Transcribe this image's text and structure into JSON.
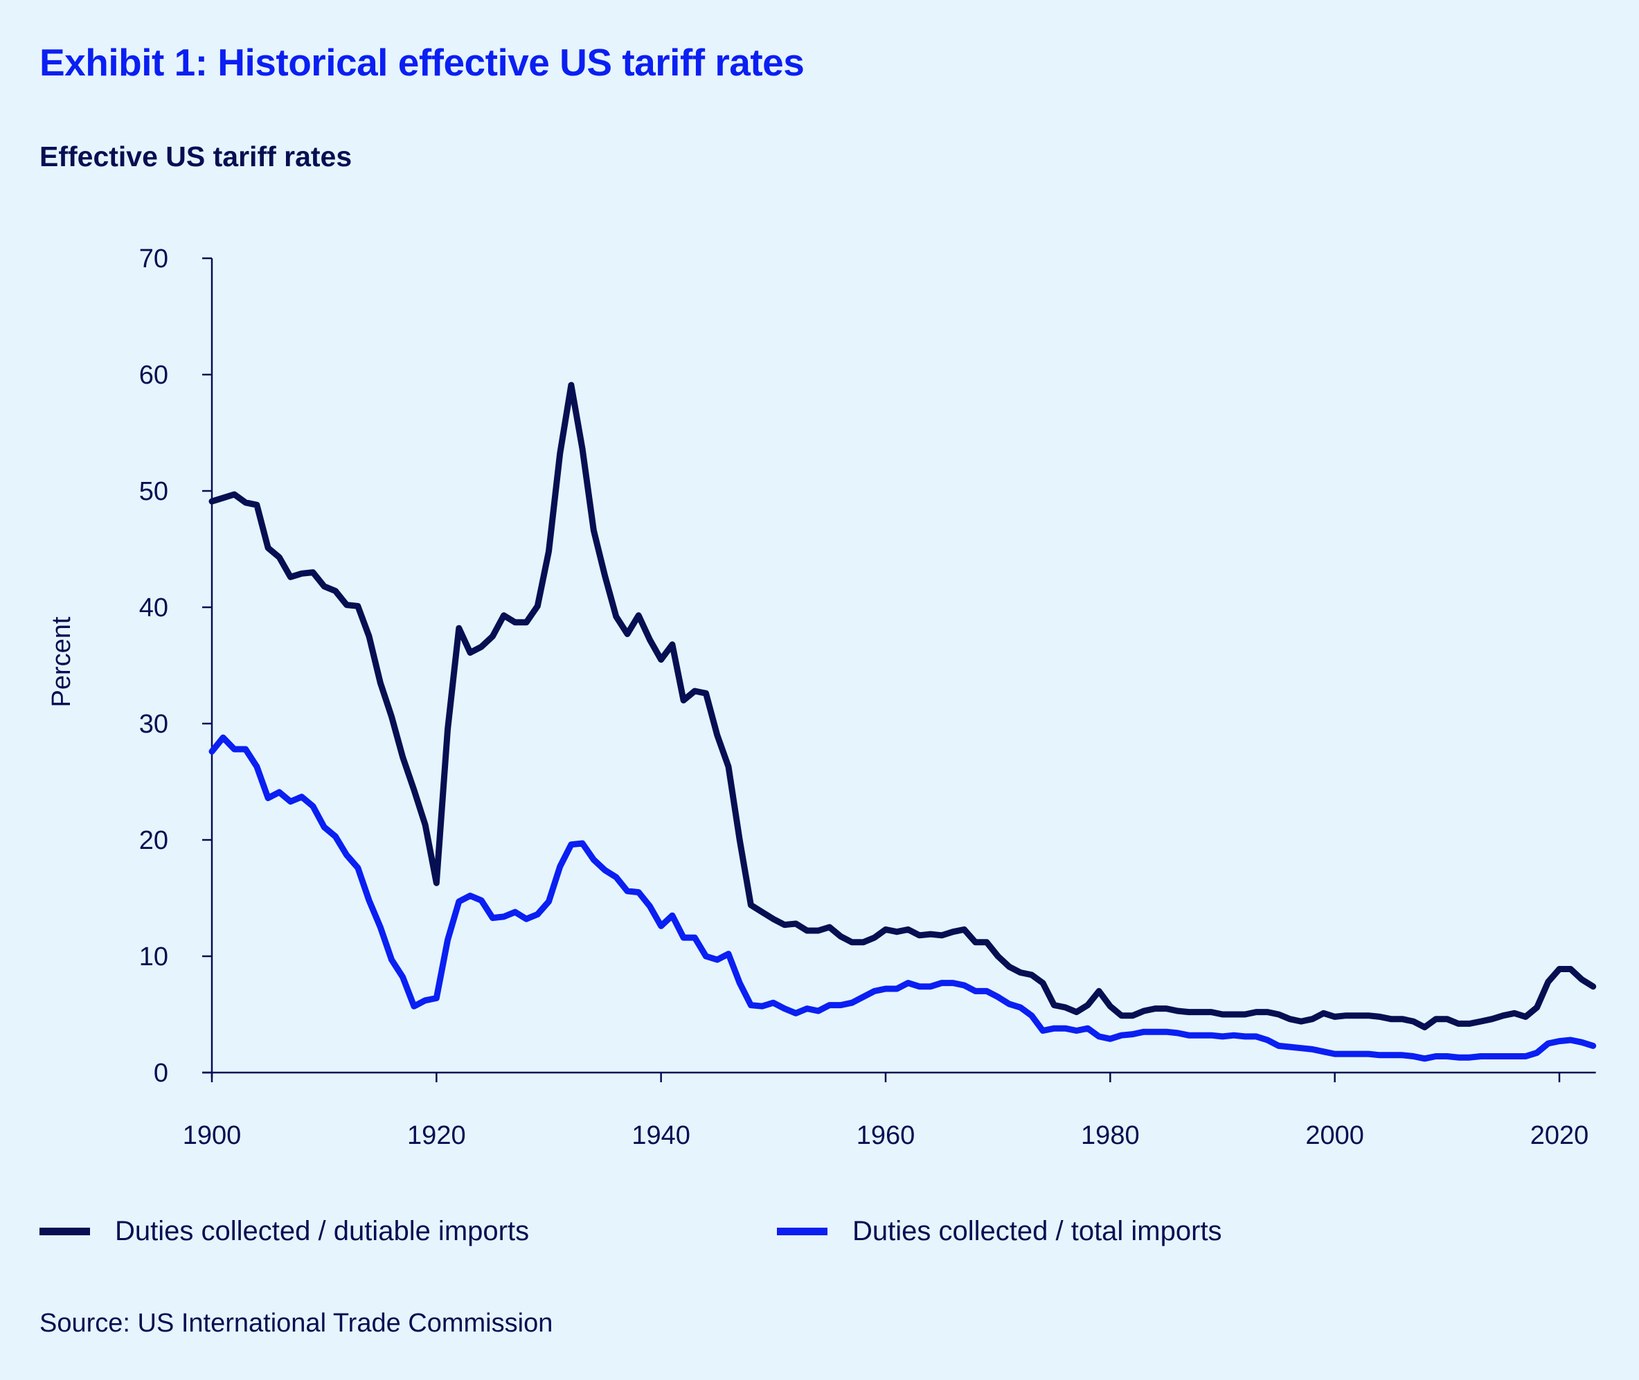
{
  "header": {
    "title": "Exhibit 1: Historical effective US tariff rates",
    "subtitle": "Effective US tariff rates"
  },
  "colors": {
    "background": "#e6f4fd",
    "title": "#0a1ff2",
    "text": "#050f52",
    "series_dutiable": "#050f52",
    "series_total": "#0a1ff2"
  },
  "footer": {
    "source": "Source: US International Trade Commission"
  },
  "chart_data": {
    "type": "line",
    "title": "Effective US tariff rates",
    "xlabel": "",
    "ylabel": "Percent",
    "xlim": [
      1900,
      2023
    ],
    "ylim": [
      0,
      70
    ],
    "grid": false,
    "legend_position": "bottom",
    "x_ticks": [
      1900,
      1920,
      1940,
      1960,
      1980,
      2000,
      2020
    ],
    "x_tick_labels": [
      "1900",
      "1920",
      "1940",
      "1960",
      "1980",
      "2000",
      "2020"
    ],
    "y_ticks": [
      0,
      10,
      20,
      30,
      40,
      50,
      60,
      70
    ],
    "y_tick_labels": [
      "0",
      "10",
      "20",
      "30",
      "40",
      "50",
      "60",
      "70"
    ],
    "x_start": 1900,
    "series": [
      {
        "name": "Duties collected / dutiable imports",
        "color": "#050f52",
        "values": [
          49.1,
          49.4,
          49.7,
          49.0,
          48.8,
          45.1,
          44.3,
          42.6,
          42.9,
          43.0,
          41.8,
          41.4,
          40.2,
          40.1,
          37.5,
          33.5,
          30.6,
          27.1,
          24.3,
          21.3,
          16.3,
          29.5,
          38.2,
          36.1,
          36.6,
          37.5,
          39.3,
          38.7,
          38.7,
          40.1,
          44.8,
          53.2,
          59.1,
          53.6,
          46.6,
          42.7,
          39.2,
          37.7,
          39.3,
          37.2,
          35.5,
          36.8,
          32.0,
          32.8,
          32.6,
          29.0,
          26.3,
          20.0,
          14.4,
          13.8,
          13.2,
          12.7,
          12.8,
          12.2,
          12.2,
          12.5,
          11.7,
          11.2,
          11.2,
          11.6,
          12.3,
          12.1,
          12.3,
          11.8,
          11.9,
          11.8,
          12.1,
          12.3,
          11.2,
          11.2,
          10.0,
          9.1,
          8.6,
          8.4,
          7.7,
          5.8,
          5.6,
          5.2,
          5.8,
          7.0,
          5.7,
          4.9,
          4.9,
          5.3,
          5.5,
          5.5,
          5.3,
          5.2,
          5.2,
          5.2,
          5.0,
          5.0,
          5.0,
          5.2,
          5.2,
          5.0,
          4.6,
          4.4,
          4.6,
          5.1,
          4.8,
          4.9,
          4.9,
          4.9,
          4.8,
          4.6,
          4.6,
          4.4,
          3.9,
          4.6,
          4.6,
          4.2,
          4.2,
          4.4,
          4.6,
          4.9,
          5.1,
          4.8,
          5.6,
          7.8,
          8.9,
          8.9,
          8.0,
          7.4
        ]
      },
      {
        "name": "Duties collected / total imports",
        "color": "#0a1ff2",
        "values": [
          27.6,
          28.8,
          27.8,
          27.8,
          26.3,
          23.6,
          24.1,
          23.3,
          23.7,
          22.9,
          21.1,
          20.3,
          18.7,
          17.6,
          14.8,
          12.5,
          9.7,
          8.2,
          5.7,
          6.2,
          6.4,
          11.4,
          14.7,
          15.2,
          14.8,
          13.3,
          13.4,
          13.8,
          13.2,
          13.6,
          14.7,
          17.7,
          19.6,
          19.7,
          18.3,
          17.4,
          16.8,
          15.6,
          15.5,
          14.3,
          12.6,
          13.5,
          11.6,
          11.6,
          10.0,
          9.7,
          10.2,
          7.7,
          5.8,
          5.7,
          6.0,
          5.5,
          5.1,
          5.5,
          5.3,
          5.8,
          5.8,
          6.0,
          6.5,
          7.0,
          7.2,
          7.2,
          7.7,
          7.4,
          7.4,
          7.7,
          7.7,
          7.5,
          7.0,
          7.0,
          6.5,
          5.9,
          5.6,
          4.9,
          3.6,
          3.8,
          3.8,
          3.6,
          3.8,
          3.1,
          2.9,
          3.2,
          3.3,
          3.5,
          3.5,
          3.5,
          3.4,
          3.2,
          3.2,
          3.2,
          3.1,
          3.2,
          3.1,
          3.1,
          2.8,
          2.3,
          2.2,
          2.1,
          2.0,
          1.8,
          1.6,
          1.6,
          1.6,
          1.6,
          1.5,
          1.5,
          1.5,
          1.4,
          1.2,
          1.4,
          1.4,
          1.3,
          1.3,
          1.4,
          1.4,
          1.4,
          1.4,
          1.4,
          1.7,
          2.5,
          2.7,
          2.8,
          2.6,
          2.3
        ]
      }
    ]
  }
}
